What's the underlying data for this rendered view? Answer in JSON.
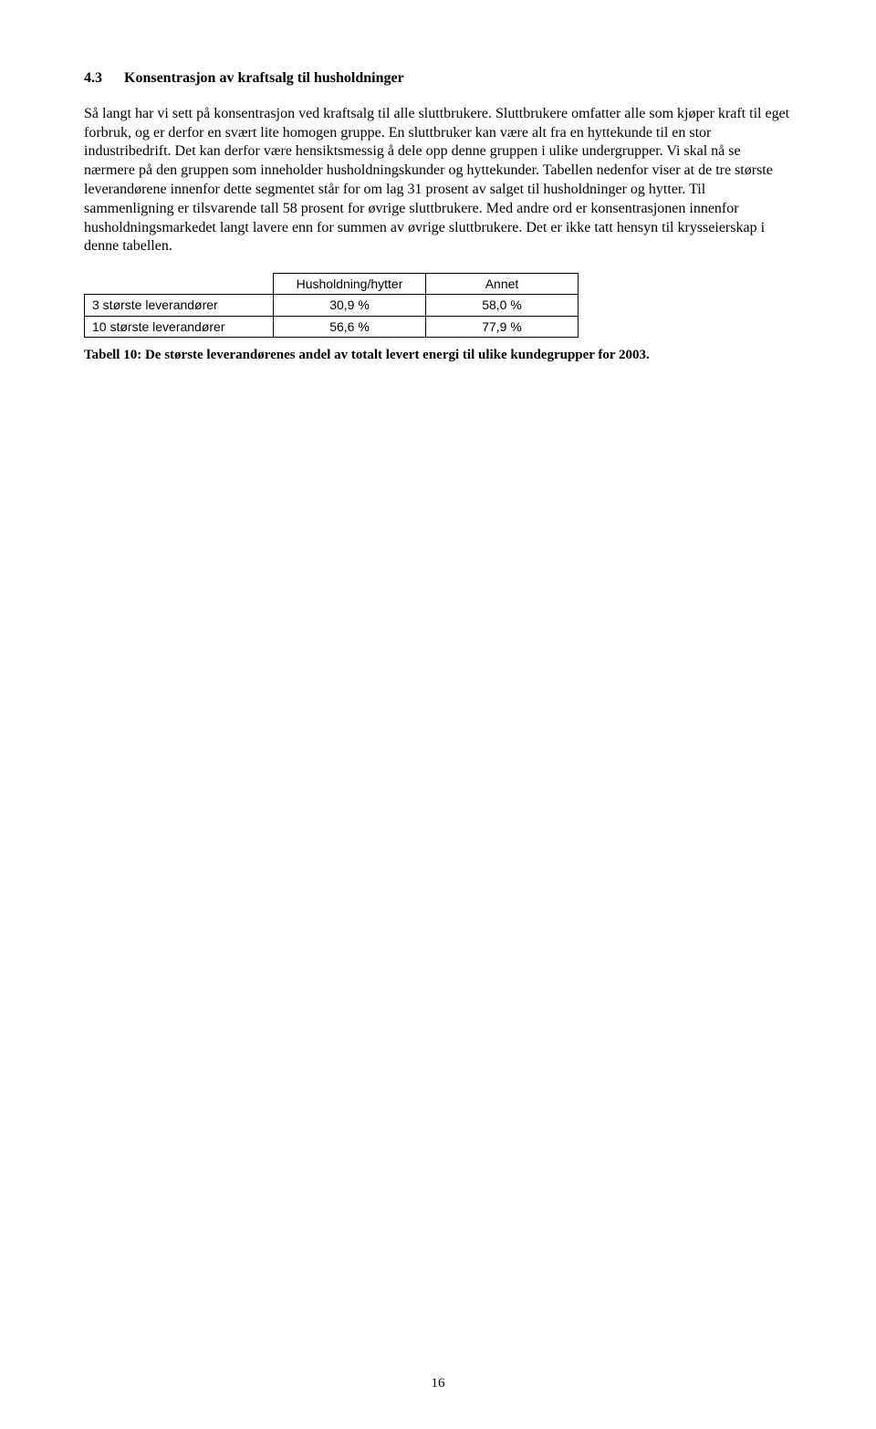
{
  "section": {
    "number": "4.3",
    "title": "Konsentrasjon av kraftsalg til husholdninger"
  },
  "paragraphs": {
    "p1": "Så langt har vi sett på konsentrasjon ved kraftsalg til alle sluttbrukere. Sluttbrukere omfatter alle som kjøper kraft til eget forbruk, og er derfor en svært lite homogen gruppe. En sluttbruker kan være alt fra en hyttekunde til en stor industribedrift. Det kan derfor være hensiktsmessig å dele opp denne gruppen i ulike undergrupper. Vi skal nå se nærmere på den gruppen som inneholder husholdningskunder og hyttekunder. Tabellen nedenfor viser at de tre største leverandørene innenfor dette segmentet står for om lag 31 prosent av salget til husholdninger og hytter. Til sammenligning er tilsvarende tall 58 prosent for øvrige sluttbrukere. Med andre ord er konsentrasjonen innenfor husholdningsmarkedet langt lavere enn for summen av øvrige sluttbrukere. Det er ikke tatt hensyn til krysseierskap i denne tabellen."
  },
  "table": {
    "headers": {
      "blank": "",
      "col1": "Husholdning/hytter",
      "col2": "Annet"
    },
    "rows": [
      {
        "label": "3 største leverandører",
        "c1": "30,9 %",
        "c2": "58,0 %"
      },
      {
        "label": "10 største leverandører",
        "c1": "56,6 %",
        "c2": "77,9 %"
      }
    ]
  },
  "caption": "Tabell 10: De største leverandørenes andel av totalt levert energi til ulike kundegrupper for 2003.",
  "pageNumber": "16"
}
